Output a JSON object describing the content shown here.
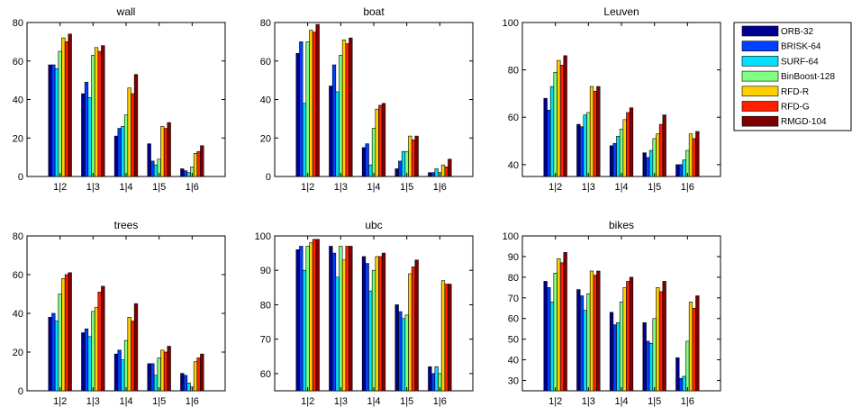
{
  "legend": [
    "ORB-32",
    "BRISK-64",
    "SURF-64",
    "BinBoost-128",
    "RFD-R",
    "RFD-G",
    "RMGD-104"
  ],
  "colors": [
    "#00008F",
    "#0040FF",
    "#00DFFF",
    "#80FF80",
    "#FFCF00",
    "#FF2000",
    "#800000"
  ],
  "chart_data": [
    {
      "type": "bar",
      "title": "wall",
      "categories": [
        "1|2",
        "1|3",
        "1|4",
        "1|5",
        "1|6"
      ],
      "ylim": [
        0,
        80
      ],
      "yticks": [
        0,
        20,
        40,
        60,
        80
      ],
      "series": [
        {
          "name": "ORB-32",
          "values": [
            58,
            43,
            21,
            17,
            4
          ]
        },
        {
          "name": "BRISK-64",
          "values": [
            58,
            49,
            25,
            8,
            3
          ]
        },
        {
          "name": "SURF-64",
          "values": [
            56,
            41,
            26,
            6,
            2
          ]
        },
        {
          "name": "BinBoost-128",
          "values": [
            65,
            63,
            32,
            9,
            5
          ]
        },
        {
          "name": "RFD-R",
          "values": [
            72,
            67,
            46,
            26,
            12
          ]
        },
        {
          "name": "RFD-G",
          "values": [
            70,
            65,
            43,
            25,
            13
          ]
        },
        {
          "name": "RMGD-104",
          "values": [
            74,
            68,
            53,
            28,
            16
          ]
        }
      ]
    },
    {
      "type": "bar",
      "title": "boat",
      "categories": [
        "1|2",
        "1|3",
        "1|4",
        "1|5",
        "1|6"
      ],
      "ylim": [
        0,
        80
      ],
      "yticks": [
        0,
        20,
        40,
        60,
        80
      ],
      "series": [
        {
          "name": "ORB-32",
          "values": [
            64,
            47,
            15,
            4,
            2
          ]
        },
        {
          "name": "BRISK-64",
          "values": [
            70,
            58,
            17,
            8,
            2
          ]
        },
        {
          "name": "SURF-64",
          "values": [
            38,
            44,
            6,
            13,
            4
          ]
        },
        {
          "name": "BinBoost-128",
          "values": [
            70,
            63,
            25,
            13,
            2
          ]
        },
        {
          "name": "RFD-R",
          "values": [
            76,
            71,
            35,
            21,
            6
          ]
        },
        {
          "name": "RFD-G",
          "values": [
            75,
            69,
            37,
            19,
            5
          ]
        },
        {
          "name": "RMGD-104",
          "values": [
            79,
            72,
            38,
            21,
            9
          ]
        }
      ]
    },
    {
      "type": "bar",
      "title": "Leuven",
      "categories": [
        "1|2",
        "1|3",
        "1|4",
        "1|5",
        "1|6"
      ],
      "ylim": [
        35,
        100
      ],
      "yticks": [
        40,
        60,
        80,
        100
      ],
      "series": [
        {
          "name": "ORB-32",
          "values": [
            68,
            57,
            48,
            45,
            40
          ]
        },
        {
          "name": "BRISK-64",
          "values": [
            63,
            56,
            49,
            43,
            40
          ]
        },
        {
          "name": "SURF-64",
          "values": [
            73,
            61,
            52,
            46,
            42
          ]
        },
        {
          "name": "BinBoost-128",
          "values": [
            79,
            62,
            55,
            51,
            46
          ]
        },
        {
          "name": "RFD-R",
          "values": [
            84,
            73,
            59,
            53,
            53
          ]
        },
        {
          "name": "RFD-G",
          "values": [
            82,
            71,
            62,
            57,
            51
          ]
        },
        {
          "name": "RMGD-104",
          "values": [
            86,
            73,
            64,
            61,
            54
          ]
        }
      ]
    },
    {
      "type": "bar",
      "title": "trees",
      "categories": [
        "1|2",
        "1|3",
        "1|4",
        "1|5",
        "1|6"
      ],
      "ylim": [
        0,
        80
      ],
      "yticks": [
        0,
        20,
        40,
        60,
        80
      ],
      "series": [
        {
          "name": "ORB-32",
          "values": [
            38,
            30,
            19,
            14,
            9
          ]
        },
        {
          "name": "BRISK-64",
          "values": [
            40,
            32,
            21,
            14,
            8
          ]
        },
        {
          "name": "SURF-64",
          "values": [
            36,
            28,
            16,
            8,
            4
          ]
        },
        {
          "name": "BinBoost-128",
          "values": [
            50,
            41,
            26,
            17,
            2
          ]
        },
        {
          "name": "RFD-R",
          "values": [
            58,
            43,
            38,
            21,
            15
          ]
        },
        {
          "name": "RFD-G",
          "values": [
            60,
            51,
            36,
            20,
            17
          ]
        },
        {
          "name": "RMGD-104",
          "values": [
            61,
            54,
            45,
            23,
            19
          ]
        }
      ]
    },
    {
      "type": "bar",
      "title": "ubc",
      "categories": [
        "1|2",
        "1|3",
        "1|4",
        "1|5",
        "1|6"
      ],
      "ylim": [
        55,
        100
      ],
      "yticks": [
        60,
        70,
        80,
        90,
        100
      ],
      "series": [
        {
          "name": "ORB-32",
          "values": [
            96,
            97,
            94,
            80,
            62
          ]
        },
        {
          "name": "BRISK-64",
          "values": [
            97,
            95,
            92,
            78,
            60
          ]
        },
        {
          "name": "SURF-64",
          "values": [
            90,
            88,
            84,
            76,
            62
          ]
        },
        {
          "name": "BinBoost-128",
          "values": [
            97,
            97,
            90,
            77,
            60
          ]
        },
        {
          "name": "RFD-R",
          "values": [
            98,
            93,
            94,
            89,
            87
          ]
        },
        {
          "name": "RFD-G",
          "values": [
            99,
            97,
            94,
            91,
            86
          ]
        },
        {
          "name": "RMGD-104",
          "values": [
            99,
            97,
            95,
            93,
            86
          ]
        }
      ]
    },
    {
      "type": "bar",
      "title": "bikes",
      "categories": [
        "1|2",
        "1|3",
        "1|4",
        "1|5",
        "1|6"
      ],
      "ylim": [
        25,
        100
      ],
      "yticks": [
        30,
        40,
        50,
        60,
        70,
        80,
        90,
        100
      ],
      "series": [
        {
          "name": "ORB-32",
          "values": [
            78,
            74,
            63,
            58,
            41
          ]
        },
        {
          "name": "BRISK-64",
          "values": [
            75,
            71,
            57,
            49,
            31
          ]
        },
        {
          "name": "SURF-64",
          "values": [
            68,
            64,
            58,
            48,
            32
          ]
        },
        {
          "name": "BinBoost-128",
          "values": [
            82,
            72,
            68,
            60,
            49
          ]
        },
        {
          "name": "RFD-R",
          "values": [
            89,
            83,
            75,
            75,
            68
          ]
        },
        {
          "name": "RFD-G",
          "values": [
            87,
            81,
            78,
            73,
            65
          ]
        },
        {
          "name": "RMGD-104",
          "values": [
            92,
            83,
            80,
            78,
            71
          ]
        }
      ]
    }
  ]
}
